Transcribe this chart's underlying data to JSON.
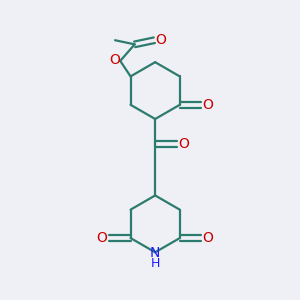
{
  "background_color": "#eef0f5",
  "bond_color": "#2d7a6e",
  "oxygen_color": "#cc0000",
  "nitrogen_color": "#1a1aff",
  "line_width": 1.6,
  "figsize": [
    3.0,
    3.0
  ],
  "dpi": 100,
  "xlim": [
    -2.0,
    2.2
  ],
  "ylim": [
    -3.2,
    2.5
  ]
}
